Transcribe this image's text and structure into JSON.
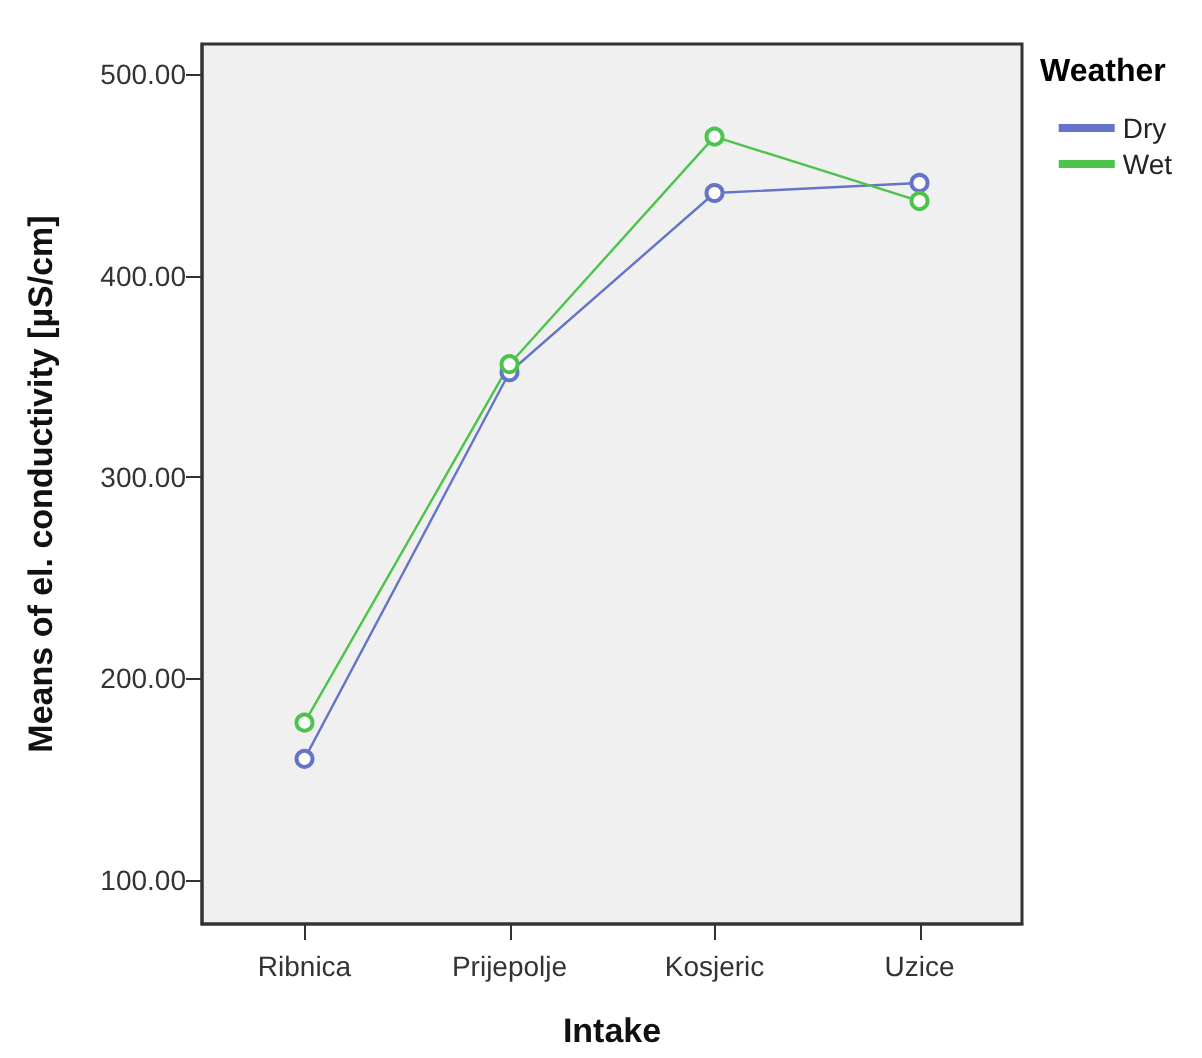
{
  "chart_data": {
    "type": "line",
    "xlabel": "Intake",
    "ylabel": "Means of el. conductivity [µS/cm]",
    "legend_title": "Weather",
    "categories": [
      "Ribnica",
      "Prijepolje",
      "Kosjeric",
      "Uzice"
    ],
    "series": [
      {
        "name": "Dry",
        "color": "#6674c8",
        "values": [
          160,
          352,
          441,
          446
        ]
      },
      {
        "name": "Wet",
        "color": "#4cc44c",
        "values": [
          178,
          356,
          469,
          437
        ]
      }
    ],
    "ylim": [
      78,
      515
    ],
    "yticks": [
      {
        "value": 100,
        "label": "100.00"
      },
      {
        "value": 200,
        "label": "200.00"
      },
      {
        "value": 300,
        "label": "300.00"
      },
      {
        "value": 400,
        "label": "400.00"
      },
      {
        "value": 500,
        "label": "500.00"
      }
    ],
    "grid": false,
    "legend": "top right",
    "marker": "circle",
    "line_style": "solid"
  }
}
